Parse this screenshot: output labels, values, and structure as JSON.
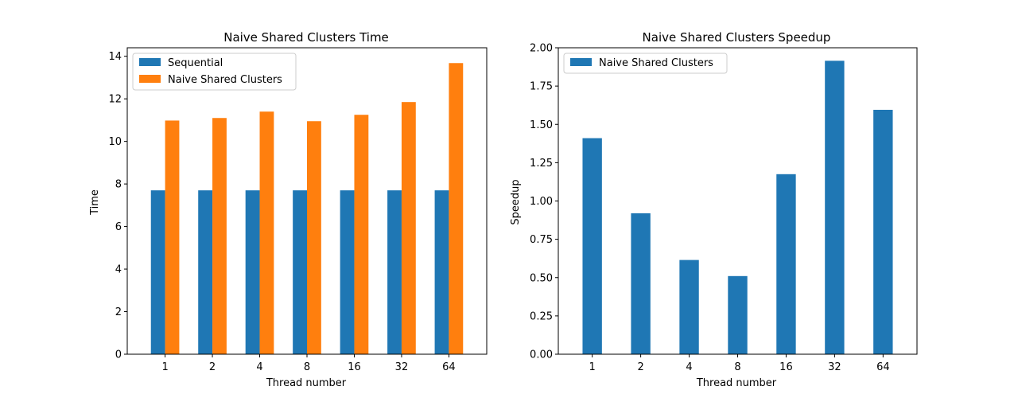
{
  "chart_data": [
    {
      "type": "bar",
      "title": "Naive Shared Clusters Time",
      "xlabel": "Thread number",
      "ylabel": "Time",
      "categories": [
        "1",
        "2",
        "4",
        "8",
        "16",
        "32",
        "64"
      ],
      "series": [
        {
          "name": "Sequential",
          "values": [
            7.7,
            7.7,
            7.7,
            7.7,
            7.7,
            7.7,
            7.7
          ],
          "color": "#1f77b4"
        },
        {
          "name": "Naive Shared Clusters",
          "values": [
            10.98,
            11.1,
            11.4,
            10.95,
            11.25,
            11.85,
            13.68
          ],
          "color": "#ff7f0e"
        }
      ],
      "ylim": [
        0,
        14.4
      ],
      "yticks": [
        0,
        2,
        4,
        6,
        8,
        10,
        12,
        14
      ],
      "ytick_labels": [
        "0",
        "2",
        "4",
        "6",
        "8",
        "10",
        "12",
        "14"
      ],
      "grid": false,
      "legend": "top-left"
    },
    {
      "type": "bar",
      "title": "Naive Shared Clusters Speedup",
      "xlabel": "Thread number",
      "ylabel": "Speedup",
      "categories": [
        "1",
        "2",
        "4",
        "8",
        "16",
        "32",
        "64"
      ],
      "series": [
        {
          "name": "Naive Shared Clusters",
          "values": [
            1.41,
            0.92,
            0.615,
            0.51,
            1.175,
            1.915,
            1.595
          ],
          "color": "#1f77b4"
        }
      ],
      "ylim": [
        0,
        2.0
      ],
      "yticks": [
        0,
        0.25,
        0.5,
        0.75,
        1.0,
        1.25,
        1.5,
        1.75,
        2.0
      ],
      "ytick_labels": [
        "0.00",
        "0.25",
        "0.50",
        "0.75",
        "1.00",
        "1.25",
        "1.50",
        "1.75",
        "2.00"
      ],
      "grid": false,
      "legend": "top-left"
    }
  ]
}
